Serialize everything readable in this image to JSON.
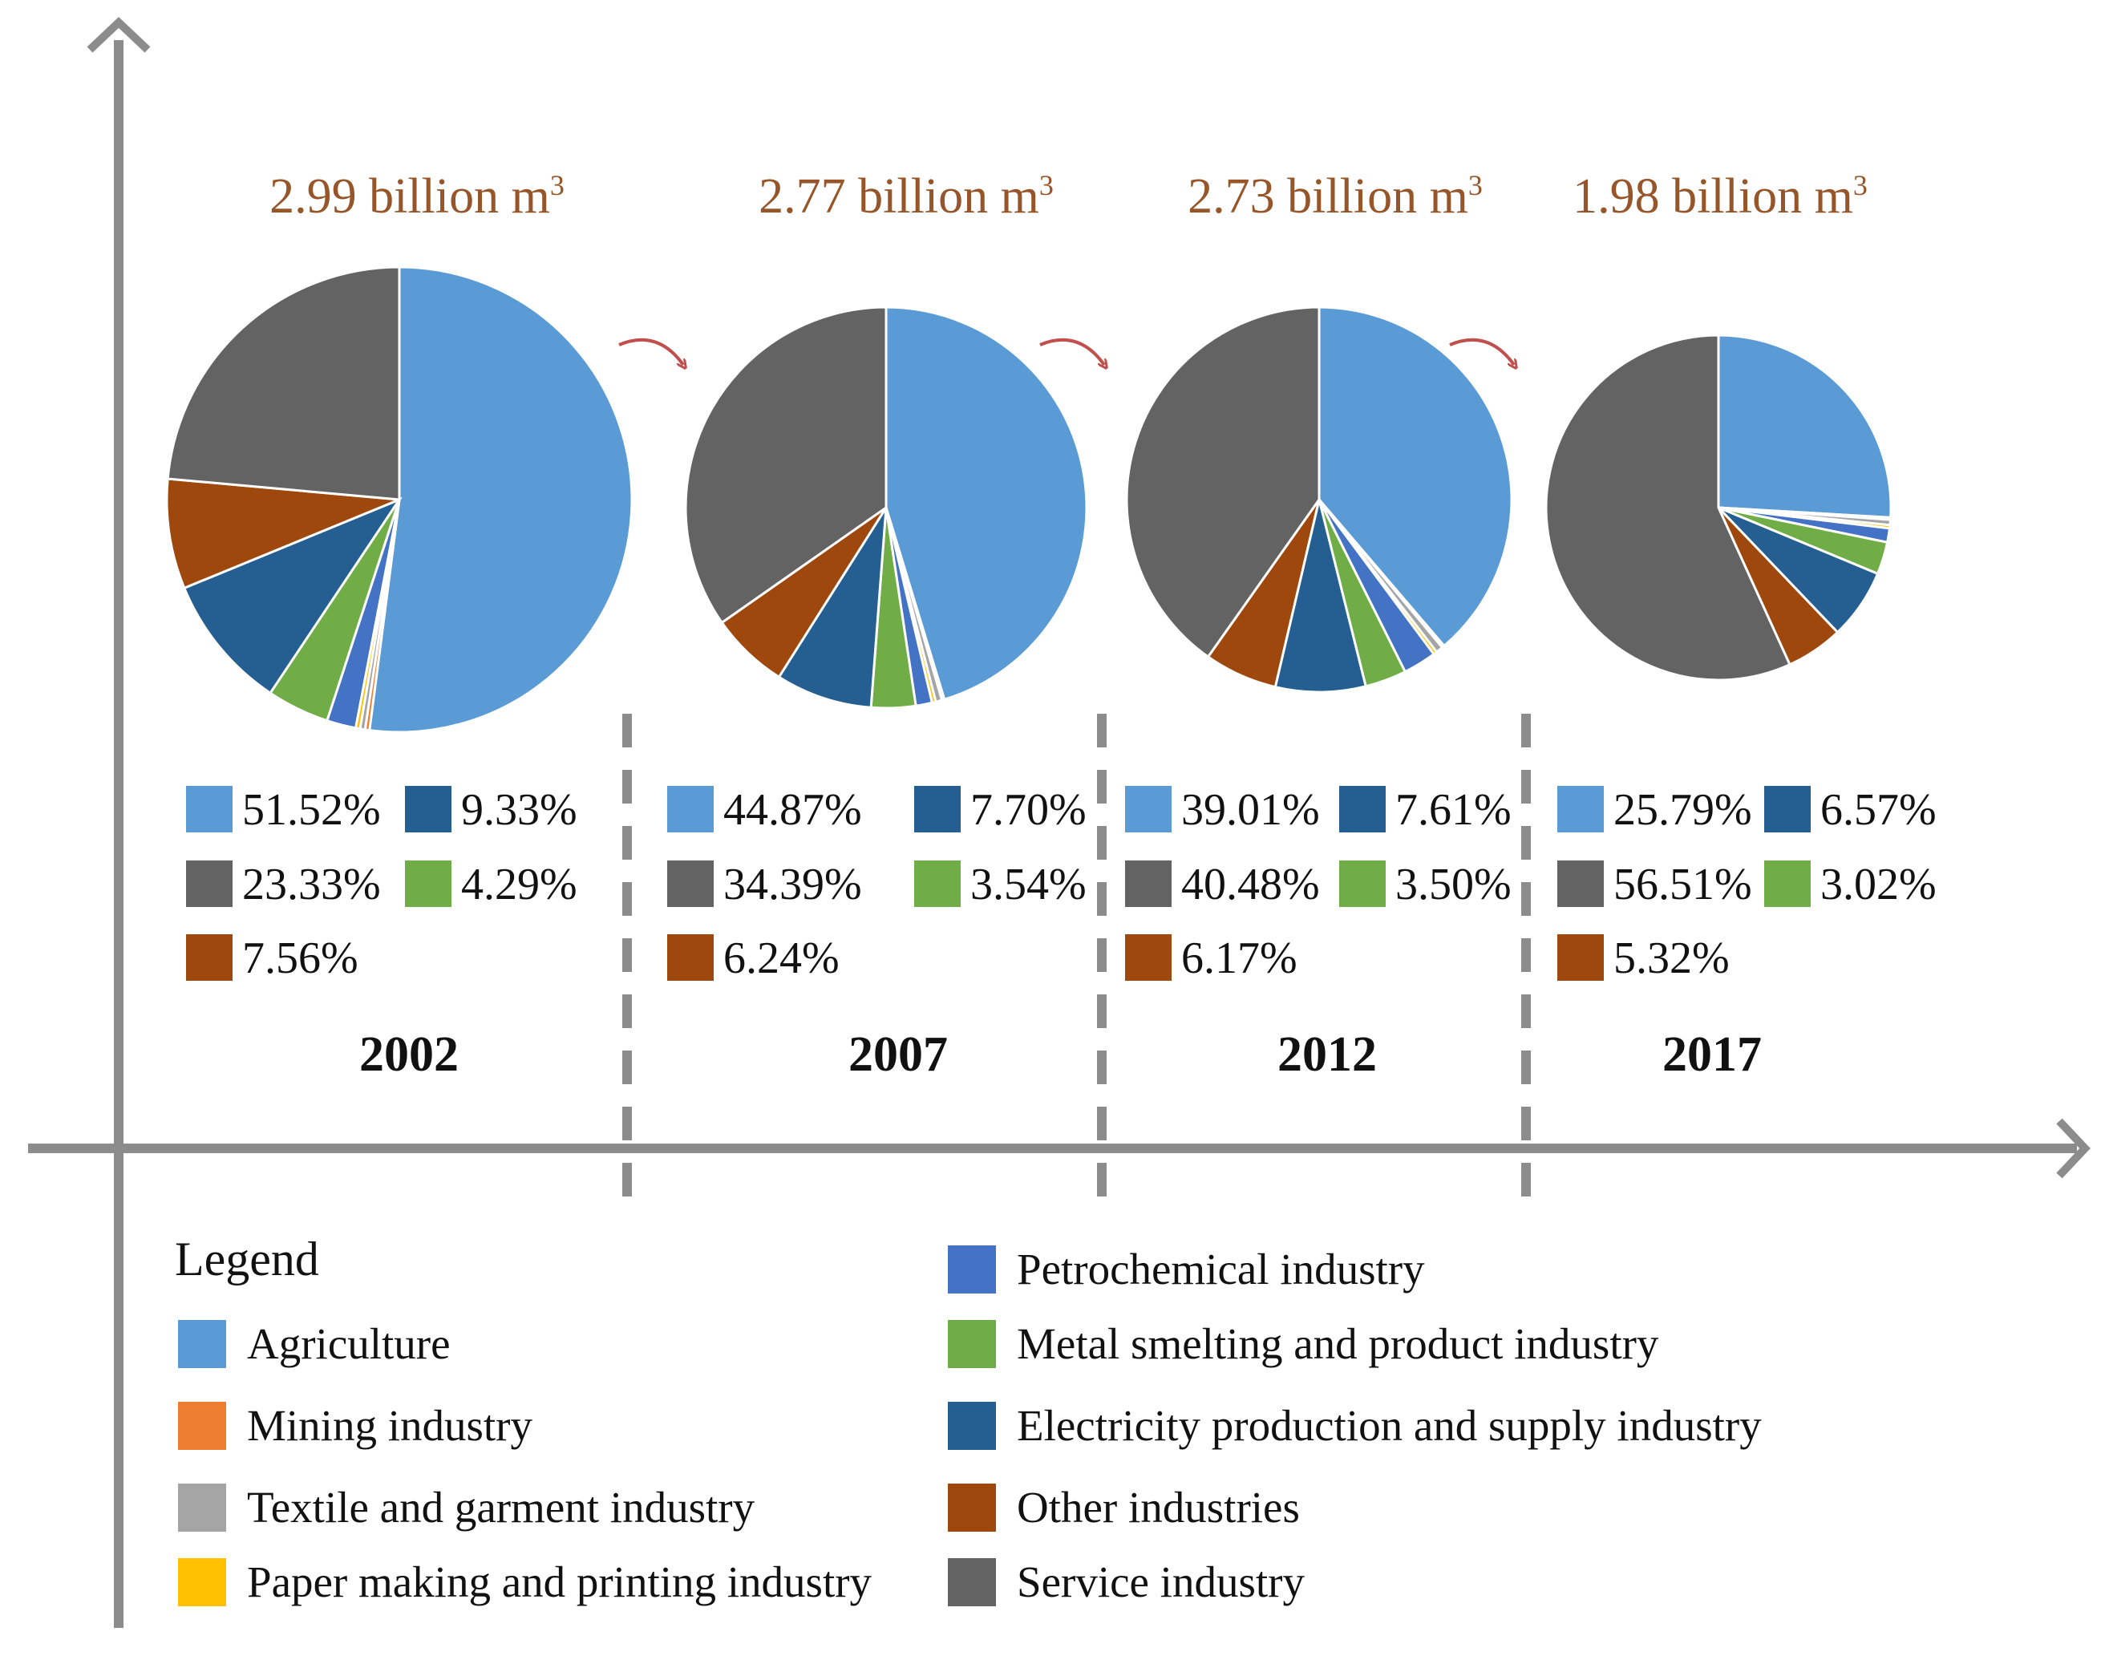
{
  "chart_data": {
    "type": "pie",
    "title": "",
    "legend_title": "Legend",
    "categories": [
      {
        "key": "agriculture",
        "name": "Agriculture",
        "color": "#5b9bd5"
      },
      {
        "key": "mining",
        "name": "Mining industry",
        "color": "#ed7d31"
      },
      {
        "key": "textile",
        "name": "Textile and garment industry",
        "color": "#a5a5a5"
      },
      {
        "key": "paper",
        "name": "Paper making and printing industry",
        "color": "#ffc000"
      },
      {
        "key": "petrochemical",
        "name": "Petrochemical industry",
        "color": "#4472c4"
      },
      {
        "key": "metal",
        "name": "Metal smelting and product industry",
        "color": "#70ad47"
      },
      {
        "key": "electricity",
        "name": "Electricity production and supply industry",
        "color": "#255e91"
      },
      {
        "key": "other",
        "name": "Other industries",
        "color": "#9e480e"
      },
      {
        "key": "service",
        "name": "Service industry",
        "color": "#636363"
      }
    ],
    "pies": [
      {
        "year": "2002",
        "total": "2.99 billion m",
        "total_sup": "3",
        "values": {
          "agriculture": 51.52,
          "mining": 0.3,
          "textile": 0.35,
          "paper": 0.3,
          "petrochemical": 2.0,
          "metal": 4.29,
          "electricity": 9.33,
          "other": 7.56,
          "service": 23.33
        },
        "labels": {
          "agriculture": "51.52%",
          "service": "23.33%",
          "other": "7.56%",
          "electricity": "9.33%",
          "metal": "4.29%"
        }
      },
      {
        "year": "2007",
        "total": "2.77 billion m",
        "total_sup": "3",
        "values": {
          "agriculture": 44.87,
          "mining": 0.2,
          "textile": 0.5,
          "paper": 0.3,
          "petrochemical": 1.3,
          "metal": 3.54,
          "electricity": 7.7,
          "other": 6.24,
          "service": 34.39
        },
        "labels": {
          "agriculture": "44.87%",
          "service": "34.39%",
          "other": "6.24%",
          "electricity": "7.70%",
          "metal": "3.54%"
        }
      },
      {
        "year": "2012",
        "total": "2.73 billion m",
        "total_sup": "3",
        "values": {
          "agriculture": 39.01,
          "mining": 0.2,
          "textile": 0.6,
          "paper": 0.3,
          "petrochemical": 2.8,
          "metal": 3.5,
          "electricity": 7.61,
          "other": 6.17,
          "service": 40.48
        },
        "labels": {
          "agriculture": "39.01%",
          "service": "40.48%",
          "other": "6.17%",
          "electricity": "7.61%",
          "metal": "3.50%"
        }
      },
      {
        "year": "2017",
        "total": "1.98 billion m",
        "total_sup": "3",
        "values": {
          "agriculture": 25.79,
          "mining": 0.2,
          "textile": 0.5,
          "paper": 0.3,
          "petrochemical": 1.3,
          "metal": 3.02,
          "electricity": 6.57,
          "other": 5.32,
          "service": 56.51
        },
        "labels": {
          "agriculture": "25.79%",
          "service": "56.51%",
          "other": "5.32%",
          "electricity": "6.57%",
          "metal": "3.02%"
        }
      }
    ]
  }
}
